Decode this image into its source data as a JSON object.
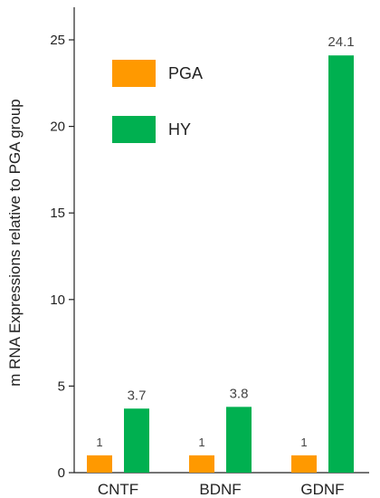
{
  "chart_data": {
    "type": "bar",
    "title": "",
    "xlabel": "",
    "ylabel": "m RNA Expressions relative to PGA group",
    "categories": [
      "CNTF",
      "BDNF",
      "GDNF"
    ],
    "series": [
      {
        "name": "PGA",
        "values": [
          1,
          1,
          1
        ],
        "color": "#FF9900",
        "labels": [
          "1",
          "1",
          "1"
        ]
      },
      {
        "name": "HY",
        "values": [
          3.7,
          3.8,
          24.1
        ],
        "color": "#00B050",
        "labels": [
          "3.7",
          "3.8",
          "24.1"
        ]
      }
    ],
    "ylim": [
      0,
      25
    ],
    "yticks": [
      0,
      5,
      10,
      15,
      20,
      25
    ],
    "grid": false,
    "legend_position": "top-left"
  }
}
